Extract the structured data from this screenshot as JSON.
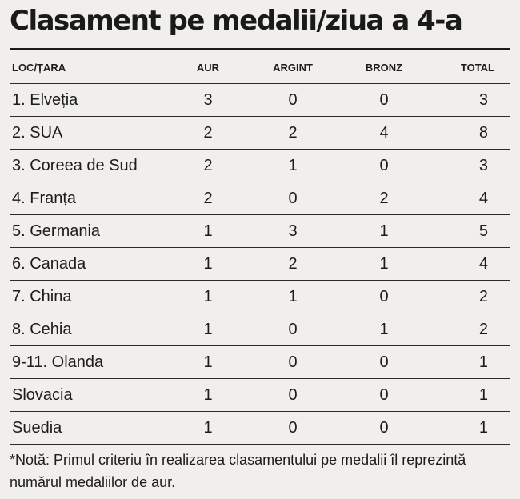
{
  "chart_data": {
    "type": "table",
    "title": "Clasament pe medalii/ziua a 4-a",
    "columns": [
      "LOC/ȚARA",
      "AUR",
      "ARGINT",
      "BRONZ",
      "TOTAL"
    ],
    "rows": [
      {
        "country": "1. Elveția",
        "aur": "3",
        "argint": "0",
        "bronz": "0",
        "total": "3"
      },
      {
        "country": "2. SUA",
        "aur": "2",
        "argint": "2",
        "bronz": "4",
        "total": "8"
      },
      {
        "country": "3. Coreea de Sud",
        "aur": "2",
        "argint": "1",
        "bronz": "0",
        "total": "3"
      },
      {
        "country": "4. Franța",
        "aur": "2",
        "argint": "0",
        "bronz": "2",
        "total": "4"
      },
      {
        "country": "5. Germania",
        "aur": "1",
        "argint": "3",
        "bronz": "1",
        "total": "5"
      },
      {
        "country": "6. Canada",
        "aur": "1",
        "argint": "2",
        "bronz": "1",
        "total": "4"
      },
      {
        "country": "7. China",
        "aur": "1",
        "argint": "1",
        "bronz": "0",
        "total": "2"
      },
      {
        "country": "8. Cehia",
        "aur": "1",
        "argint": "0",
        "bronz": "1",
        "total": "2"
      },
      {
        "country": "9-11. Olanda",
        "aur": "1",
        "argint": "0",
        "bronz": "0",
        "total": "1"
      },
      {
        "country": " Slovacia",
        "aur": "1",
        "argint": "0",
        "bronz": "0",
        "total": "1"
      },
      {
        "country": " Suedia",
        "aur": "1",
        "argint": "0",
        "bronz": "0",
        "total": "1"
      }
    ],
    "note": "*Notă: Primul criteriu în realizarea clasamentului pe medalii îl reprezintă numărul medaliilor de aur."
  }
}
